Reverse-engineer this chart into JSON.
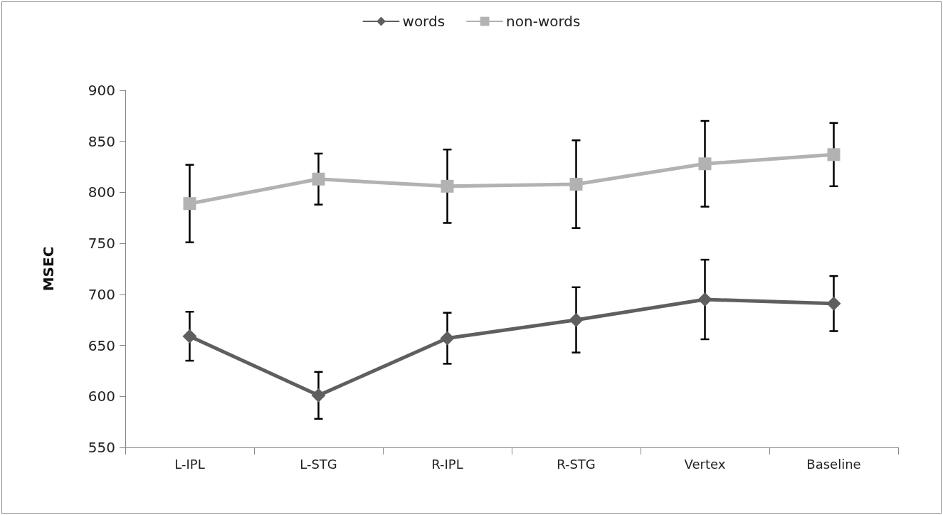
{
  "chart_data": {
    "type": "line",
    "ylabel": "MSEC",
    "categories": [
      "L-IPL",
      "L-STG",
      "R-IPL",
      "R-STG",
      "Vertex",
      "Baseline"
    ],
    "series": [
      {
        "name": "words",
        "color": "#5f5f5f",
        "marker": "diamond",
        "values": [
          659,
          601,
          657,
          675,
          695,
          691
        ],
        "errors": [
          24,
          23,
          25,
          32,
          39,
          27
        ]
      },
      {
        "name": "non-words",
        "color": "#b2b2b2",
        "marker": "square",
        "values": [
          789,
          813,
          806,
          808,
          828,
          837
        ],
        "errors": [
          38,
          25,
          36,
          43,
          42,
          31
        ]
      }
    ],
    "ylim": [
      550,
      900
    ],
    "yticks": [
      550,
      600,
      650,
      700,
      750,
      800,
      850,
      900
    ],
    "grid": false,
    "legend": "top",
    "line_style": "solid"
  }
}
